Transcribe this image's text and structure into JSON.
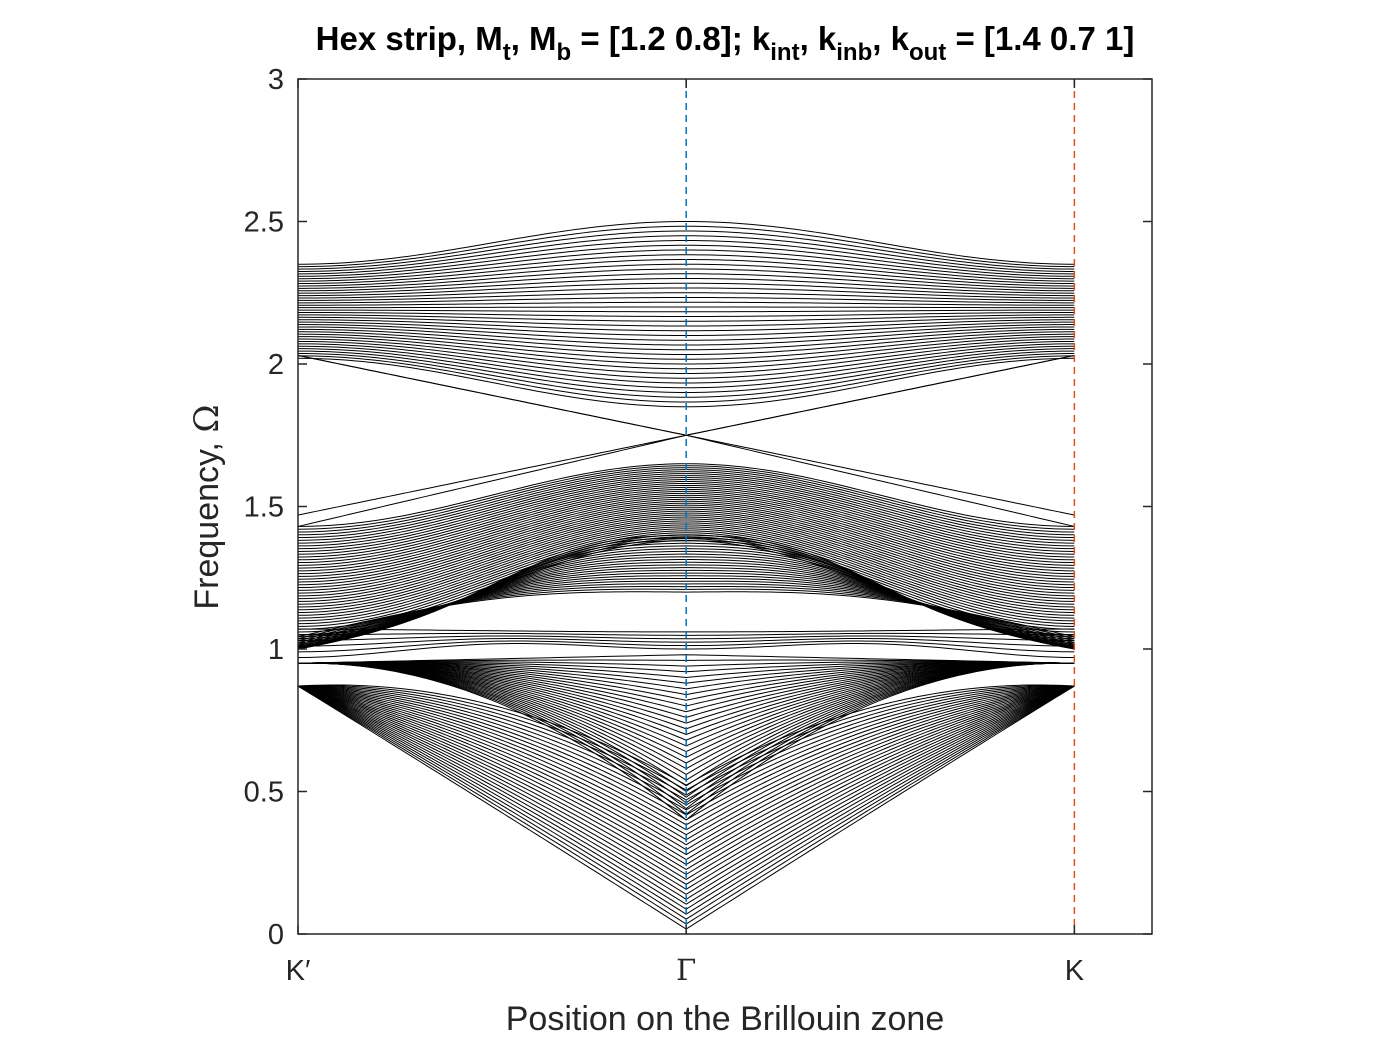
{
  "chart_data": {
    "type": "line",
    "title": {
      "text": "Hex strip, M_t, M_b = [1.2 0.8]; k_int, k_inb, k_out = [1.4 0.7 1]",
      "parts": [
        {
          "t": "Hex strip, M"
        },
        {
          "t": "t",
          "sub": true
        },
        {
          "t": ", M"
        },
        {
          "t": "b",
          "sub": true
        },
        {
          "t": " = [1.2 0.8]; k"
        },
        {
          "t": "int",
          "sub": true
        },
        {
          "t": ", k"
        },
        {
          "t": "inb",
          "sub": true
        },
        {
          "t": ", k"
        },
        {
          "t": "out",
          "sub": true
        },
        {
          "t": " = [1.4 0.7 1]"
        }
      ]
    },
    "xlabel": "Position on the Brillouin zone",
    "ylabel": {
      "text": "Frequency, ",
      "symbol": "Ω"
    },
    "ylim": [
      0,
      3
    ],
    "yticks": [
      0,
      0.5,
      1,
      1.5,
      2,
      2.5,
      3
    ],
    "ytick_labels": [
      "0",
      "0.5",
      "1",
      "1.5",
      "2",
      "2.5",
      "3"
    ],
    "xlim": [
      -1,
      1.2
    ],
    "xticks": [
      -1,
      0,
      1
    ],
    "xtick_labels": [
      "K′",
      "Γ",
      "K"
    ],
    "vertical_lines": [
      {
        "x": 0,
        "color": "#0072BD",
        "style": "dashed"
      },
      {
        "x": 1,
        "color": "#D95319",
        "style": "dashed"
      }
    ],
    "line_color": "#000000",
    "grid": false,
    "band_model": {
      "description": "symmetric band curves f(x), x in [-1,1]",
      "acoustic_band": {
        "count": 30,
        "gamma_limit": 0.0,
        "k_value": 0.87,
        "shape": "|x|-cone + crossing"
      },
      "edge_band_low": {
        "count": 6,
        "gamma_range": [
          1.0,
          1.06
        ],
        "k_range": [
          0.97,
          1.07
        ]
      },
      "middle_band": {
        "count": 40,
        "gamma_range": [
          1.38,
          1.65
        ],
        "k_range": [
          1.05,
          1.43
        ]
      },
      "crossing_modes": {
        "count": 2,
        "gamma_value": 1.75,
        "k_values": [
          1.43,
          2.03
        ]
      },
      "upper_band": {
        "count": 40,
        "gamma_range": [
          1.85,
          2.5
        ],
        "k_range": [
          2.02,
          2.35
        ]
      }
    }
  }
}
